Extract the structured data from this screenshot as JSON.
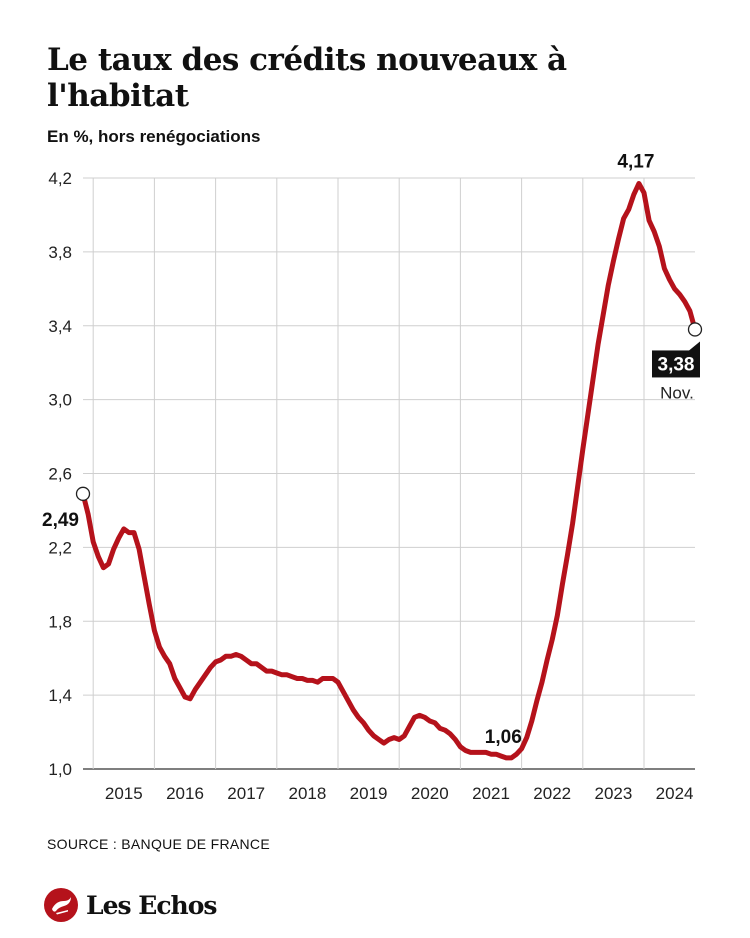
{
  "header": {
    "title": "Le taux des crédits nouveaux à l'habitat",
    "subtitle": "En %, hors renégociations"
  },
  "footer": {
    "source": "SOURCE : BANQUE DE FRANCE",
    "brand": "Les Echos",
    "brand_color": "#b5121b"
  },
  "chart_data": {
    "type": "line",
    "title": "",
    "xlabel": "",
    "ylabel": "",
    "ylim": [
      1.0,
      4.2
    ],
    "yticks": [
      1.0,
      1.4,
      1.8,
      2.2,
      2.6,
      3.0,
      3.4,
      3.8,
      4.2
    ],
    "ytick_labels": [
      "1,0",
      "1,4",
      "1,8",
      "2,2",
      "2,6",
      "3,0",
      "3,4",
      "3,8",
      "4,2"
    ],
    "xlim": [
      "2014-11",
      "2024-11"
    ],
    "xtick_labels": [
      "2015",
      "2016",
      "2017",
      "2018",
      "2019",
      "2020",
      "2021",
      "2022",
      "2023",
      "2024"
    ],
    "grid": true,
    "line_color": "#b5121b",
    "series": [
      {
        "x": [
          "2014-11",
          "2014-12",
          "2015-01",
          "2015-02",
          "2015-03",
          "2015-04",
          "2015-05",
          "2015-06",
          "2015-07",
          "2015-08",
          "2015-09",
          "2015-10",
          "2015-11",
          "2015-12",
          "2016-01",
          "2016-02",
          "2016-03",
          "2016-04",
          "2016-05",
          "2016-06",
          "2016-07",
          "2016-08",
          "2016-09",
          "2016-10",
          "2016-11",
          "2016-12",
          "2017-01",
          "2017-02",
          "2017-03",
          "2017-04",
          "2017-05",
          "2017-06",
          "2017-07",
          "2017-08",
          "2017-09",
          "2017-10",
          "2017-11",
          "2017-12",
          "2018-01",
          "2018-02",
          "2018-03",
          "2018-04",
          "2018-05",
          "2018-06",
          "2018-07",
          "2018-08",
          "2018-09",
          "2018-10",
          "2018-11",
          "2018-12",
          "2019-01",
          "2019-02",
          "2019-03",
          "2019-04",
          "2019-05",
          "2019-06",
          "2019-07",
          "2019-08",
          "2019-09",
          "2019-10",
          "2019-11",
          "2019-12",
          "2020-01",
          "2020-02",
          "2020-03",
          "2020-04",
          "2020-05",
          "2020-06",
          "2020-07",
          "2020-08",
          "2020-09",
          "2020-10",
          "2020-11",
          "2020-12",
          "2021-01",
          "2021-02",
          "2021-03",
          "2021-04",
          "2021-05",
          "2021-06",
          "2021-07",
          "2021-08",
          "2021-09",
          "2021-10",
          "2021-11",
          "2021-12",
          "2022-01",
          "2022-02",
          "2022-03",
          "2022-04",
          "2022-05",
          "2022-06",
          "2022-07",
          "2022-08",
          "2022-09",
          "2022-10",
          "2022-11",
          "2022-12",
          "2023-01",
          "2023-02",
          "2023-03",
          "2023-04",
          "2023-05",
          "2023-06",
          "2023-07",
          "2023-08",
          "2023-09",
          "2023-10",
          "2023-11",
          "2023-12",
          "2024-01",
          "2024-02",
          "2024-03",
          "2024-04",
          "2024-05",
          "2024-06",
          "2024-07",
          "2024-08",
          "2024-09",
          "2024-10",
          "2024-11"
        ],
        "values": [
          2.49,
          2.38,
          2.23,
          2.15,
          2.09,
          2.11,
          2.19,
          2.25,
          2.3,
          2.28,
          2.28,
          2.19,
          2.04,
          1.89,
          1.75,
          1.66,
          1.61,
          1.57,
          1.49,
          1.44,
          1.39,
          1.38,
          1.43,
          1.47,
          1.51,
          1.55,
          1.58,
          1.59,
          1.61,
          1.61,
          1.62,
          1.61,
          1.59,
          1.57,
          1.57,
          1.55,
          1.53,
          1.53,
          1.52,
          1.51,
          1.51,
          1.5,
          1.49,
          1.49,
          1.48,
          1.48,
          1.47,
          1.49,
          1.49,
          1.49,
          1.47,
          1.42,
          1.37,
          1.32,
          1.28,
          1.25,
          1.21,
          1.18,
          1.16,
          1.14,
          1.16,
          1.17,
          1.16,
          1.18,
          1.23,
          1.28,
          1.29,
          1.28,
          1.26,
          1.25,
          1.22,
          1.21,
          1.19,
          1.16,
          1.12,
          1.1,
          1.09,
          1.09,
          1.09,
          1.09,
          1.08,
          1.08,
          1.07,
          1.06,
          1.06,
          1.08,
          1.11,
          1.17,
          1.26,
          1.37,
          1.47,
          1.59,
          1.7,
          1.83,
          2.0,
          2.16,
          2.33,
          2.53,
          2.73,
          2.92,
          3.11,
          3.3,
          3.46,
          3.62,
          3.75,
          3.87,
          3.98,
          4.03,
          4.11,
          4.17,
          4.12,
          3.97,
          3.91,
          3.83,
          3.71,
          3.65,
          3.6,
          3.57,
          3.53,
          3.48,
          3.38
        ]
      }
    ],
    "annotations": [
      {
        "x": "2014-11",
        "label": "2,49"
      },
      {
        "x": "2021-10",
        "label": "1,06"
      },
      {
        "x": "2023-12",
        "label": "4,17"
      },
      {
        "x": "2024-11",
        "label": "3,38",
        "sublabel": "Nov."
      }
    ]
  }
}
